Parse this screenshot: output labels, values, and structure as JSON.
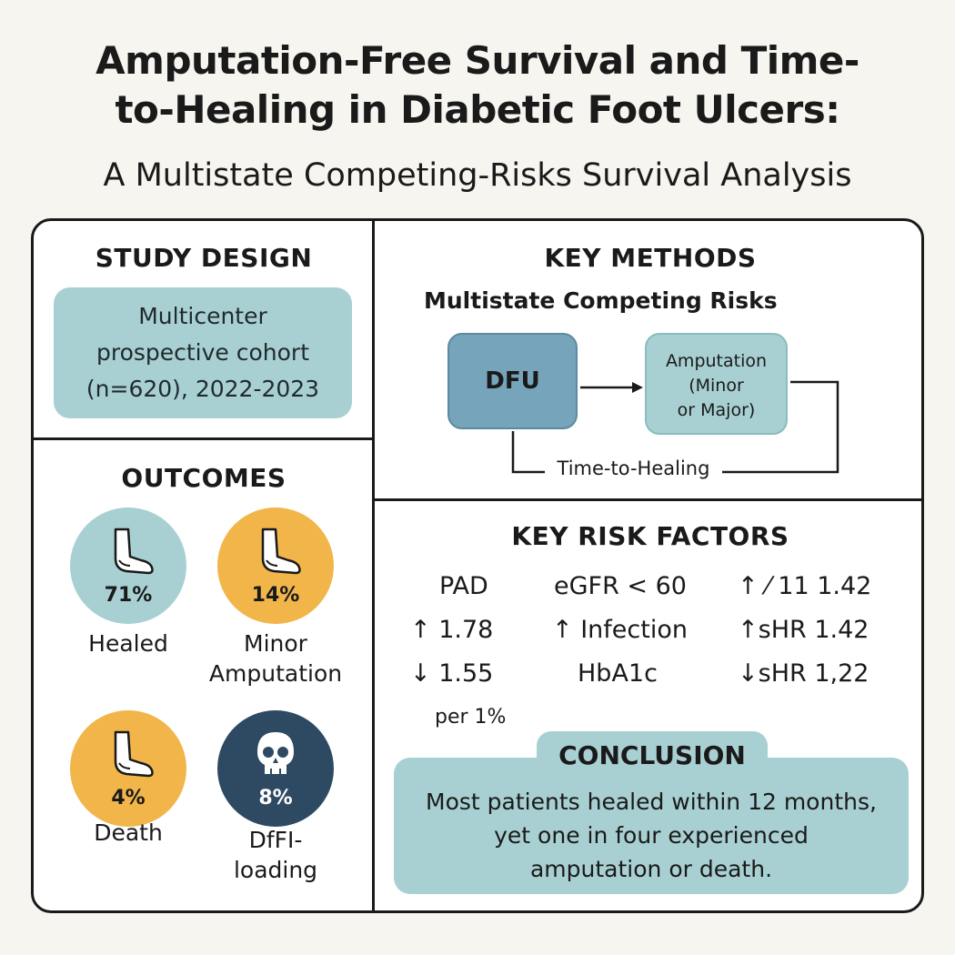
{
  "title_line1": "Amputation-Free Survival and Time-",
  "title_line2": "to-Healing in Diabetic Foot Ulcers:",
  "subtitle": "A Multistate Competing-Risks Survival Analysis",
  "study_design": {
    "heading": "STUDY DESIGN",
    "line1": "Multicenter",
    "line2": "prospective cohort",
    "line3": "(n=620), 2022-2023"
  },
  "outcomes": {
    "heading": "OUTCOMES",
    "items": [
      {
        "pct": "71%",
        "label1": "Healed",
        "label2": "",
        "icon": "foot-icon",
        "color": "#a8d0d2"
      },
      {
        "pct": "14%",
        "label1": "Minor",
        "label2": "Amputation",
        "icon": "foot-icon",
        "color": "#f1b54a"
      },
      {
        "pct": "4%",
        "label1": "Death",
        "label2": "",
        "icon": "foot-icon",
        "color": "#f1b54a"
      },
      {
        "pct": "8%",
        "label1": "DfFI-",
        "label2": "loading",
        "icon": "skull-icon",
        "color": "#2e4a63"
      }
    ]
  },
  "key_methods": {
    "heading": "KEY METHODS",
    "subheading": "Multistate Competing Risks",
    "node_dfu": "DFU",
    "node_amp_line1": "Amputation",
    "node_amp_line2": "(Minor",
    "node_amp_line3": "or Major)",
    "path_label": "Time-to-Healing"
  },
  "risk_factors": {
    "heading": "KEY RISK FACTORS",
    "col1": [
      "PAD",
      "↑ 1.78",
      "↓ 1.55",
      "per 1%"
    ],
    "col2": [
      "eGFR < 60",
      "↑ Infection",
      "HbA1c"
    ],
    "col3": [
      "↑ ⁄ 11 1.42",
      "↑sHR 1.42",
      "↓sHR 1,22"
    ]
  },
  "conclusion": {
    "heading": "CONCLUSION",
    "line1": "Most patients healed within 12 months,",
    "line2": "yet one in four experienced",
    "line3": "amputation or death."
  },
  "colors": {
    "teal": "#a8d0d2",
    "gold": "#f1b54a",
    "navy": "#2e4a63",
    "steel": "#76a4bb"
  }
}
